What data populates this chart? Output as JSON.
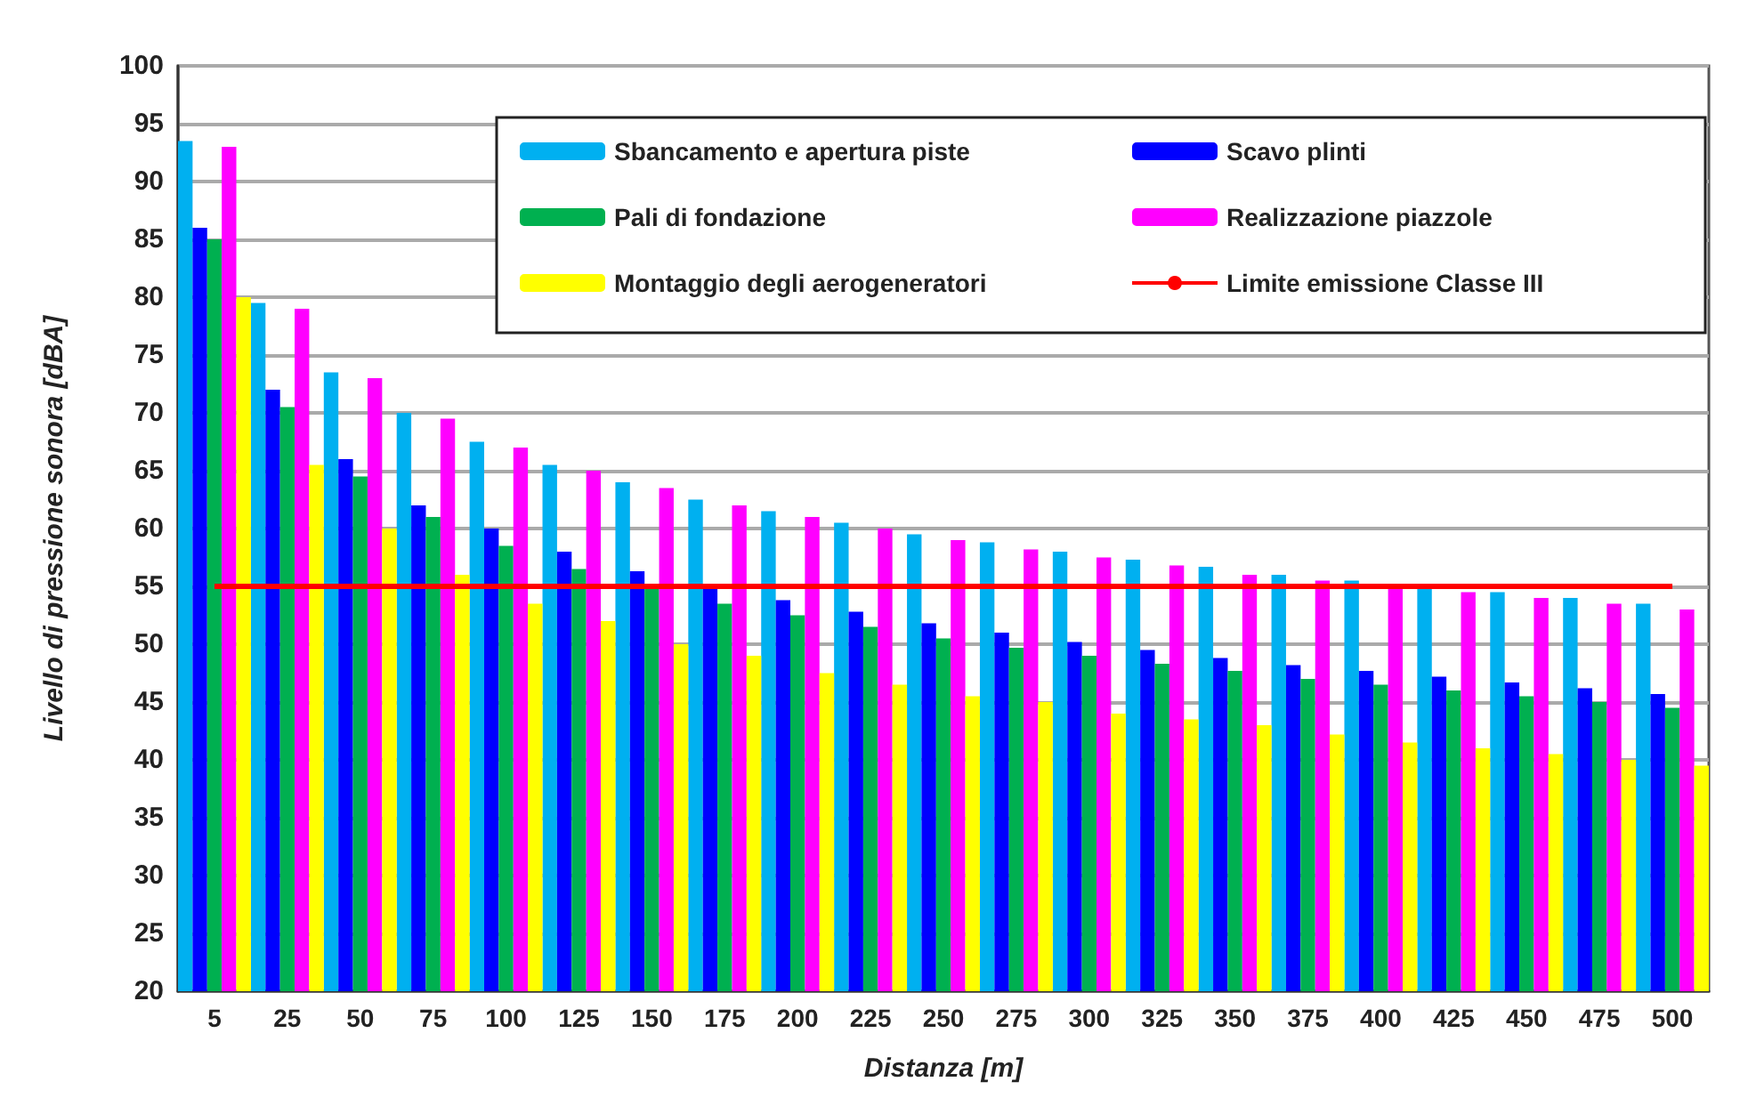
{
  "chart_data": {
    "type": "bar",
    "xlabel": "Distanza [m]",
    "ylabel": "Livello di pressione sonora [dBA]",
    "categories": [
      "5",
      "25",
      "50",
      "75",
      "100",
      "125",
      "150",
      "175",
      "200",
      "225",
      "250",
      "275",
      "300",
      "325",
      "350",
      "375",
      "400",
      "425",
      "450",
      "475",
      "500"
    ],
    "series": [
      {
        "name": "Sbancamento e apertura piste",
        "color": "#00b0f0",
        "values": [
          93.5,
          79.5,
          73.5,
          70,
          67.5,
          65.5,
          64,
          62.5,
          61.5,
          60.5,
          59.5,
          58.8,
          58,
          57.3,
          56.7,
          56,
          55.5,
          55,
          54.5,
          54,
          53.5
        ]
      },
      {
        "name": "Scavo plinti",
        "color": "#0000ff",
        "values": [
          86,
          72,
          66,
          62,
          60,
          58,
          56.3,
          54.8,
          53.8,
          52.8,
          51.8,
          51,
          50.2,
          49.5,
          48.8,
          48.2,
          47.7,
          47.2,
          46.7,
          46.2,
          45.7
        ]
      },
      {
        "name": "Pali di fondazione",
        "color": "#00b050",
        "values": [
          85,
          70.5,
          64.5,
          61,
          58.5,
          56.5,
          55,
          53.5,
          52.5,
          51.5,
          50.5,
          49.7,
          49,
          48.3,
          47.7,
          47,
          46.5,
          46,
          45.5,
          45,
          44.5
        ]
      },
      {
        "name": "Realizzazione piazzole",
        "color": "#ff00ff",
        "values": [
          93,
          79,
          73,
          69.5,
          67,
          65,
          63.5,
          62,
          61,
          60,
          59,
          58.2,
          57.5,
          56.8,
          56,
          55.5,
          55,
          54.5,
          54,
          53.5,
          53
        ]
      },
      {
        "name": "Montaggio degli aerogeneratori",
        "color": "#ffff00",
        "values": [
          80,
          65.5,
          60,
          56,
          53.5,
          52,
          50,
          49,
          47.5,
          46.5,
          45.5,
          45,
          44,
          43.5,
          43,
          42.2,
          41.5,
          41,
          40.5,
          40,
          39.5
        ]
      }
    ],
    "ref_lines": [
      {
        "axis": "y",
        "value": 55,
        "label": "Limite emissione Classe III",
        "color": "#ff0000"
      }
    ],
    "ylim": [
      20,
      100
    ],
    "yticks": [
      20,
      25,
      30,
      35,
      40,
      45,
      50,
      55,
      60,
      65,
      70,
      75,
      80,
      85,
      90,
      95,
      100
    ],
    "grid": "y",
    "legend": "top right"
  }
}
